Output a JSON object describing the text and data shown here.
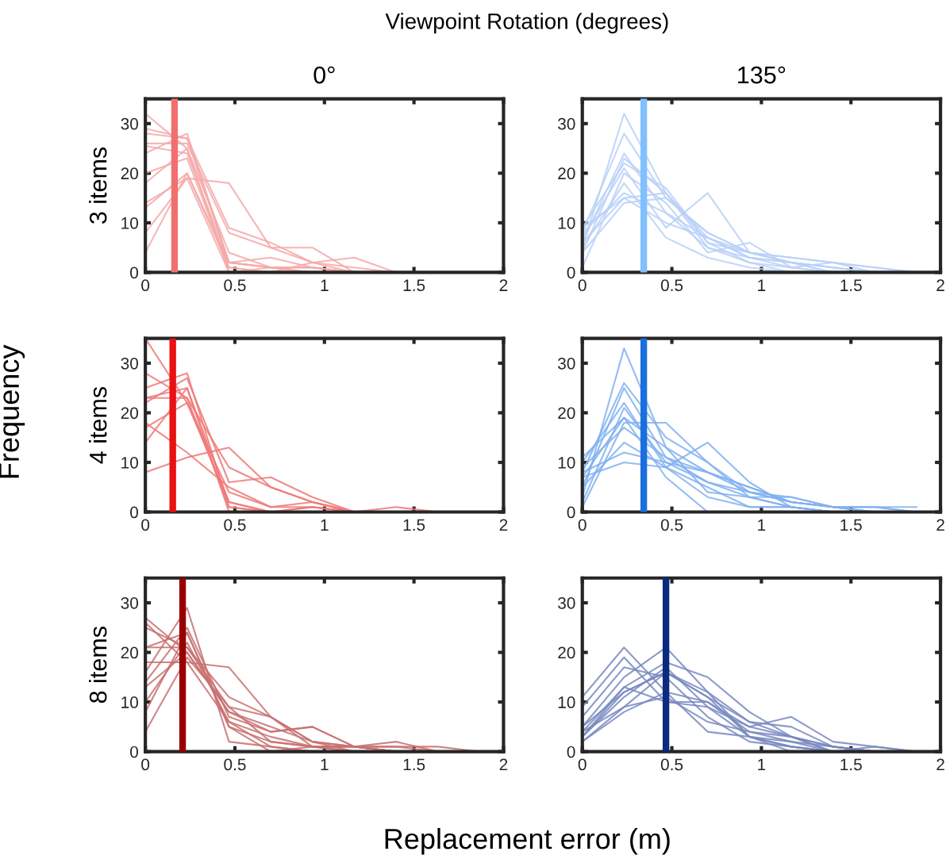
{
  "chart_data": [
    {
      "type": "line",
      "title": "0°",
      "ylabel": "3 items",
      "xlim": [
        0,
        2
      ],
      "ylim": [
        0,
        35
      ],
      "xticks": [
        0,
        0.5,
        1,
        1.5,
        2
      ],
      "yticks": [
        0,
        10,
        20,
        30
      ],
      "grid": false,
      "legend": false,
      "annotations": [
        "Viewpoint Rotation (degrees)",
        "Frequency",
        "Replacement error (m)"
      ],
      "x": [
        0,
        0.233,
        0.467,
        0.7,
        0.933,
        1.167,
        1.4,
        1.633,
        1.867
      ],
      "ref_lines": [
        {
          "axis": "x",
          "value": 0.163,
          "label": null,
          "color": "#f07070"
        }
      ],
      "series": [
        {
          "color": "#f4a8a8",
          "values": [
            32,
            25,
            4,
            1,
            0,
            0,
            0,
            0,
            0
          ]
        },
        {
          "color": "#f4a8a8",
          "values": [
            29,
            27,
            2,
            1,
            1,
            0,
            0,
            0,
            0
          ]
        },
        {
          "color": "#f4a8a8",
          "values": [
            28,
            27,
            9,
            6,
            2,
            0,
            0,
            0,
            0
          ]
        },
        {
          "color": "#f4a8a8",
          "values": [
            26,
            26,
            8,
            5,
            5,
            0,
            0,
            0,
            0
          ]
        },
        {
          "color": "#f4a8a8",
          "values": [
            25.5,
            24,
            2,
            3,
            1,
            0,
            0,
            0,
            0
          ]
        },
        {
          "color": "#f4a8a8",
          "values": [
            24,
            28,
            2,
            1,
            1,
            0,
            0,
            0,
            0
          ]
        },
        {
          "color": "#f4a8a8",
          "values": [
            20,
            23,
            1,
            0,
            2,
            1,
            0,
            0,
            0
          ]
        },
        {
          "color": "#f4a8a8",
          "values": [
            18,
            25,
            0,
            1,
            0,
            0,
            0,
            0,
            0
          ]
        },
        {
          "color": "#f4a8a8",
          "values": [
            14,
            19,
            18,
            5,
            2,
            3,
            0,
            0,
            0
          ]
        },
        {
          "color": "#f4a8a8",
          "values": [
            13,
            20,
            1,
            0,
            0,
            0,
            0,
            0,
            0
          ]
        },
        {
          "color": "#f4a8a8",
          "values": [
            8,
            19,
            0,
            0,
            0,
            0,
            0,
            0,
            0
          ]
        },
        {
          "color": "#f4a8a8",
          "values": [
            4,
            20,
            2,
            1,
            1,
            0,
            0,
            0,
            0
          ]
        }
      ]
    },
    {
      "type": "line",
      "title": "135°",
      "xlim": [
        0,
        2
      ],
      "ylim": [
        0,
        35
      ],
      "xticks": [
        0,
        0.5,
        1,
        1.5,
        2
      ],
      "yticks": [
        0,
        10,
        20,
        30
      ],
      "grid": false,
      "legend": false,
      "x": [
        0,
        0.233,
        0.467,
        0.7,
        0.933,
        1.167,
        1.4,
        1.633,
        1.867
      ],
      "ref_lines": [
        {
          "axis": "x",
          "value": 0.343,
          "label": null,
          "color": "#80c0ff"
        }
      ],
      "series": [
        {
          "color": "#b8d0f8",
          "values": [
            5,
            32,
            16,
            6,
            4,
            2,
            1,
            0,
            0
          ]
        },
        {
          "color": "#b8d0f8",
          "values": [
            8,
            28,
            15,
            8,
            4,
            3,
            2,
            0,
            0
          ]
        },
        {
          "color": "#b8d0f8",
          "values": [
            6,
            24,
            12,
            7,
            3,
            2,
            0,
            0,
            0
          ]
        },
        {
          "color": "#b8d0f8",
          "values": [
            4,
            23,
            16,
            5,
            3,
            1,
            0,
            0,
            0
          ]
        },
        {
          "color": "#b8d0f8",
          "values": [
            9,
            22,
            17,
            6,
            2,
            0,
            0,
            0,
            0
          ]
        },
        {
          "color": "#b8d0f8",
          "values": [
            7,
            21,
            9,
            16,
            4,
            2,
            1,
            0,
            0
          ]
        },
        {
          "color": "#b8d0f8",
          "values": [
            1,
            20,
            14,
            4,
            6,
            1,
            0,
            0,
            0
          ]
        },
        {
          "color": "#b8d0f8",
          "values": [
            5,
            18,
            7,
            3,
            1,
            0,
            0,
            0,
            0
          ]
        },
        {
          "color": "#b8d0f8",
          "values": [
            8,
            16,
            12,
            5,
            2,
            1,
            2,
            1,
            0
          ]
        },
        {
          "color": "#b8d0f8",
          "values": [
            6,
            15,
            10,
            7,
            3,
            2,
            1,
            0,
            0
          ]
        },
        {
          "color": "#b8d0f8",
          "values": [
            4,
            14,
            15,
            8,
            4,
            3,
            2,
            1,
            0
          ]
        },
        {
          "color": "#b8d0f8",
          "values": [
            9,
            15,
            16,
            7,
            4,
            2,
            0,
            0,
            0
          ]
        }
      ]
    },
    {
      "type": "line",
      "ylabel": "4 items",
      "xlim": [
        0,
        2
      ],
      "ylim": [
        0,
        35
      ],
      "xticks": [
        0,
        0.5,
        1,
        1.5,
        2
      ],
      "yticks": [
        0,
        10,
        20,
        30
      ],
      "grid": false,
      "legend": false,
      "x": [
        0,
        0.233,
        0.467,
        0.7,
        0.933,
        1.167,
        1.4,
        1.633,
        1.867
      ],
      "ref_lines": [
        {
          "axis": "x",
          "value": 0.153,
          "label": null,
          "color": "#e81010"
        }
      ],
      "series": [
        {
          "color": "#f07878",
          "values": [
            35,
            22,
            2,
            0,
            0,
            0,
            0,
            0,
            0
          ]
        },
        {
          "color": "#f07878",
          "values": [
            28,
            23,
            9,
            5,
            2,
            0,
            0,
            0,
            0
          ]
        },
        {
          "color": "#f07878",
          "values": [
            25,
            28,
            1,
            0,
            1,
            0,
            0,
            0,
            0
          ]
        },
        {
          "color": "#f07878",
          "values": [
            23,
            25,
            2,
            0,
            1,
            0,
            1,
            0,
            0
          ]
        },
        {
          "color": "#f07878",
          "values": [
            22,
            27,
            6,
            7,
            3,
            0,
            0,
            0,
            0
          ]
        },
        {
          "color": "#f07878",
          "values": [
            18,
            12,
            5,
            1,
            1,
            0,
            0,
            0,
            0
          ]
        },
        {
          "color": "#f07878",
          "values": [
            17,
            22,
            4,
            1,
            2,
            0,
            0,
            0,
            0
          ]
        },
        {
          "color": "#f07878",
          "values": [
            14,
            25,
            0,
            0,
            0,
            0,
            0,
            0,
            0
          ]
        },
        {
          "color": "#f07878",
          "values": [
            8,
            11,
            13,
            5,
            2,
            0,
            0,
            0,
            0
          ]
        },
        {
          "color": "#f07878",
          "values": [
            23,
            23,
            1,
            0,
            0,
            0,
            0,
            0,
            0
          ]
        }
      ]
    },
    {
      "type": "line",
      "xlim": [
        0,
        2
      ],
      "ylim": [
        0,
        35
      ],
      "xticks": [
        0,
        0.5,
        1,
        1.5,
        2
      ],
      "yticks": [
        0,
        10,
        20,
        30
      ],
      "grid": false,
      "legend": false,
      "x": [
        0,
        0.233,
        0.467,
        0.7,
        0.933,
        1.167,
        1.4,
        1.633,
        1.867
      ],
      "ref_lines": [
        {
          "axis": "x",
          "value": 0.343,
          "label": null,
          "color": "#1a6fdf"
        }
      ],
      "series": [
        {
          "color": "#80b0f0",
          "values": [
            3,
            33,
            13,
            8,
            5,
            2,
            1,
            0,
            0
          ]
        },
        {
          "color": "#80b0f0",
          "values": [
            8,
            26,
            15,
            10,
            4,
            2,
            1,
            1,
            0
          ]
        },
        {
          "color": "#80b0f0",
          "values": [
            5,
            25,
            11,
            6,
            3,
            3,
            1,
            0,
            0
          ]
        },
        {
          "color": "#80b0f0",
          "values": [
            10,
            22,
            9,
            14,
            6,
            1,
            0,
            0,
            0
          ]
        },
        {
          "color": "#80b0f0",
          "values": [
            2,
            21,
            10,
            8,
            4,
            2,
            1,
            1,
            1
          ]
        },
        {
          "color": "#80b0f0",
          "values": [
            7,
            19,
            13,
            4,
            3,
            1,
            0,
            0,
            0
          ]
        },
        {
          "color": "#80b0f0",
          "values": [
            11,
            19,
            7,
            0,
            0,
            0,
            0,
            0,
            0
          ]
        },
        {
          "color": "#80b0f0",
          "values": [
            1,
            18,
            18,
            10,
            3,
            1,
            0,
            0,
            0
          ]
        },
        {
          "color": "#80b0f0",
          "values": [
            9,
            17,
            11,
            8,
            5,
            2,
            1,
            1,
            0
          ]
        },
        {
          "color": "#80b0f0",
          "values": [
            5,
            14,
            9,
            3,
            1,
            1,
            0,
            0,
            0
          ]
        },
        {
          "color": "#80b0f0",
          "values": [
            8,
            12,
            10,
            6,
            4,
            3,
            1,
            0,
            0
          ]
        },
        {
          "color": "#80b0f0",
          "values": [
            7,
            10,
            9,
            5,
            1,
            1,
            0,
            0,
            0
          ]
        }
      ]
    },
    {
      "type": "line",
      "ylabel": "8 items",
      "xlim": [
        0,
        2
      ],
      "ylim": [
        0,
        35
      ],
      "xticks": [
        0,
        0.5,
        1,
        1.5,
        2
      ],
      "yticks": [
        0,
        10,
        20,
        30
      ],
      "grid": false,
      "legend": false,
      "x": [
        0,
        0.233,
        0.467,
        0.7,
        0.933,
        1.167,
        1.4,
        1.633,
        1.867
      ],
      "ref_lines": [
        {
          "axis": "x",
          "value": 0.208,
          "label": null,
          "color": "#990000"
        }
      ],
      "series": [
        {
          "color": "#c87070",
          "values": [
            27,
            20,
            8,
            4,
            5,
            1,
            0,
            0,
            0
          ]
        },
        {
          "color": "#c87070",
          "values": [
            26,
            18,
            6,
            1,
            0,
            0,
            0,
            0,
            0
          ]
        },
        {
          "color": "#c87070",
          "values": [
            25,
            21,
            9,
            7,
            2,
            1,
            2,
            0,
            0
          ]
        },
        {
          "color": "#c87070",
          "values": [
            21,
            24,
            5,
            2,
            1,
            1,
            1,
            1,
            0
          ]
        },
        {
          "color": "#c87070",
          "values": [
            21,
            21,
            11,
            7,
            1,
            0,
            0,
            0,
            0
          ]
        },
        {
          "color": "#c87070",
          "values": [
            18,
            18,
            17,
            7,
            2,
            0,
            0,
            0,
            0
          ]
        },
        {
          "color": "#c87070",
          "values": [
            16,
            29,
            2,
            1,
            0,
            0,
            0,
            0,
            0
          ]
        },
        {
          "color": "#c87070",
          "values": [
            14,
            25,
            7,
            4,
            5,
            1,
            0,
            0,
            0
          ]
        },
        {
          "color": "#c87070",
          "values": [
            13,
            20,
            8,
            5,
            2,
            1,
            0,
            0,
            0
          ]
        },
        {
          "color": "#c87070",
          "values": [
            10,
            22,
            6,
            3,
            1,
            1,
            1,
            0,
            0
          ]
        },
        {
          "color": "#c87070",
          "values": [
            8,
            24,
            5,
            0,
            1,
            1,
            0,
            0,
            0
          ]
        },
        {
          "color": "#c87070",
          "values": [
            4,
            19,
            9,
            2,
            1,
            0,
            0,
            0,
            0
          ]
        }
      ]
    },
    {
      "type": "line",
      "xlim": [
        0,
        2
      ],
      "ylim": [
        0,
        35
      ],
      "xticks": [
        0,
        0.5,
        1,
        1.5,
        2
      ],
      "yticks": [
        0,
        10,
        20,
        30
      ],
      "grid": false,
      "legend": false,
      "x": [
        0,
        0.233,
        0.467,
        0.7,
        0.933,
        1.167,
        1.4,
        1.633,
        1.867
      ],
      "ref_lines": [
        {
          "axis": "x",
          "value": 0.467,
          "label": null,
          "color": "#0a2a80"
        }
      ],
      "series": [
        {
          "color": "#7888c0",
          "values": [
            11,
            21,
            12,
            10,
            4,
            3,
            0,
            0,
            0
          ]
        },
        {
          "color": "#7888c0",
          "values": [
            9,
            19,
            10,
            9,
            3,
            1,
            0,
            0,
            0
          ]
        },
        {
          "color": "#7888c0",
          "values": [
            7,
            17,
            15,
            7,
            2,
            1,
            0,
            0,
            0
          ]
        },
        {
          "color": "#7888c0",
          "values": [
            5,
            15,
            21,
            12,
            6,
            5,
            1,
            0,
            0
          ]
        },
        {
          "color": "#7888c0",
          "values": [
            4,
            13,
            18,
            15,
            8,
            3,
            0,
            0,
            0
          ]
        },
        {
          "color": "#7888c0",
          "values": [
            3,
            12,
            16,
            11,
            3,
            1,
            0,
            1,
            0
          ]
        },
        {
          "color": "#7888c0",
          "values": [
            3,
            11,
            17,
            9,
            5,
            7,
            2,
            1,
            0
          ]
        },
        {
          "color": "#7888c0",
          "values": [
            2,
            9,
            16,
            12,
            3,
            2,
            0,
            0,
            0
          ]
        },
        {
          "color": "#7888c0",
          "values": [
            2,
            8,
            12,
            4,
            3,
            0,
            0,
            0,
            0
          ]
        },
        {
          "color": "#7888c0",
          "values": [
            3,
            13,
            10,
            10,
            5,
            3,
            1,
            0,
            0
          ]
        },
        {
          "color": "#7888c0",
          "values": [
            5,
            12,
            16,
            11,
            6,
            3,
            1,
            0,
            0
          ]
        },
        {
          "color": "#7888c0",
          "values": [
            4,
            9,
            11,
            6,
            4,
            2,
            1,
            0,
            0
          ]
        }
      ]
    }
  ]
}
